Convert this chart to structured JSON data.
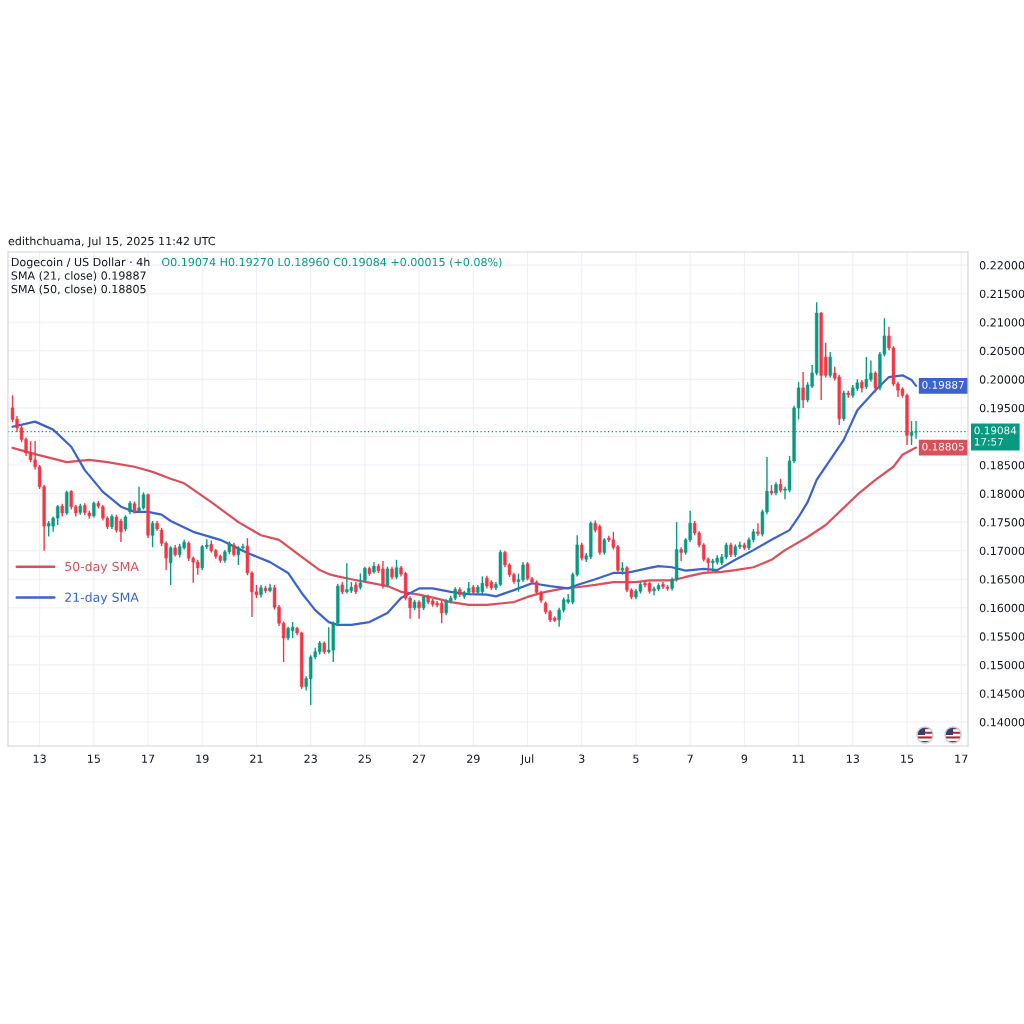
{
  "chart_data": {
    "type": "candlestick",
    "title": "Dogecoin / US Dollar · 4h",
    "subtitle": "edithchuama, Jul 15, 2025 11:42 UTC",
    "annotations": [
      "O0.19074 H0.19270 L0.18960 C0.19084 +0.00015 (+0.08%)",
      "SMA (21, close) 0.19887",
      "SMA (50, close) 0.18805"
    ],
    "x": [
      "2025-06-12T00:00",
      "2025-06-12T04:00",
      "2025-06-12T08:00",
      "2025-06-12T12:00",
      "2025-06-12T16:00",
      "2025-06-12T20:00",
      "2025-06-13T00:00",
      "2025-06-13T04:00",
      "2025-06-13T08:00",
      "2025-06-13T12:00",
      "2025-06-13T16:00",
      "2025-06-13T20:00",
      "2025-06-14T00:00",
      "2025-06-14T04:00",
      "2025-06-14T08:00",
      "2025-06-14T12:00",
      "2025-06-14T16:00",
      "2025-06-14T20:00",
      "2025-06-15T00:00",
      "2025-06-15T04:00",
      "2025-06-15T08:00",
      "2025-06-15T12:00",
      "2025-06-15T16:00",
      "2025-06-15T20:00",
      "2025-06-16T00:00",
      "2025-06-16T04:00",
      "2025-06-16T08:00",
      "2025-06-16T12:00",
      "2025-06-16T16:00",
      "2025-06-16T20:00",
      "2025-06-17T00:00",
      "2025-06-17T04:00",
      "2025-06-17T08:00",
      "2025-06-17T12:00",
      "2025-06-17T16:00",
      "2025-06-17T20:00",
      "2025-06-18T00:00",
      "2025-06-18T04:00",
      "2025-06-18T08:00",
      "2025-06-18T12:00",
      "2025-06-18T16:00",
      "2025-06-18T20:00",
      "2025-06-19T00:00",
      "2025-06-19T04:00",
      "2025-06-19T08:00",
      "2025-06-19T12:00",
      "2025-06-19T16:00",
      "2025-06-19T20:00",
      "2025-06-20T00:00",
      "2025-06-20T04:00",
      "2025-06-20T08:00",
      "2025-06-20T12:00",
      "2025-06-20T16:00",
      "2025-06-20T20:00",
      "2025-06-21T00:00",
      "2025-06-21T04:00",
      "2025-06-21T08:00",
      "2025-06-21T12:00",
      "2025-06-21T16:00",
      "2025-06-21T20:00",
      "2025-06-22T00:00",
      "2025-06-22T04:00",
      "2025-06-22T08:00",
      "2025-06-22T12:00",
      "2025-06-22T16:00",
      "2025-06-22T20:00",
      "2025-06-23T00:00",
      "2025-06-23T04:00",
      "2025-06-23T08:00",
      "2025-06-23T12:00",
      "2025-06-23T16:00",
      "2025-06-23T20:00",
      "2025-06-24T00:00",
      "2025-06-24T04:00",
      "2025-06-24T08:00",
      "2025-06-24T12:00",
      "2025-06-24T16:00",
      "2025-06-24T20:00",
      "2025-06-25T00:00",
      "2025-06-25T04:00",
      "2025-06-25T08:00",
      "2025-06-25T12:00",
      "2025-06-25T16:00",
      "2025-06-25T20:00",
      "2025-06-26T00:00",
      "2025-06-26T04:00",
      "2025-06-26T08:00",
      "2025-06-26T12:00",
      "2025-06-26T16:00",
      "2025-06-26T20:00",
      "2025-06-27T00:00",
      "2025-06-27T04:00",
      "2025-06-27T08:00",
      "2025-06-27T12:00",
      "2025-06-27T16:00",
      "2025-06-27T20:00",
      "2025-06-28T00:00",
      "2025-06-28T04:00",
      "2025-06-28T08:00",
      "2025-06-28T12:00",
      "2025-06-28T16:00",
      "2025-06-28T20:00",
      "2025-06-29T00:00",
      "2025-06-29T04:00",
      "2025-06-29T08:00",
      "2025-06-29T12:00",
      "2025-06-29T16:00",
      "2025-06-29T20:00",
      "2025-06-30T00:00",
      "2025-06-30T04:00",
      "2025-06-30T08:00",
      "2025-06-30T12:00",
      "2025-06-30T16:00",
      "2025-06-30T20:00",
      "2025-07-01T00:00",
      "2025-07-01T04:00",
      "2025-07-01T08:00",
      "2025-07-01T12:00",
      "2025-07-01T16:00",
      "2025-07-01T20:00",
      "2025-07-02T00:00",
      "2025-07-02T04:00",
      "2025-07-02T08:00",
      "2025-07-02T12:00",
      "2025-07-02T16:00",
      "2025-07-02T20:00",
      "2025-07-03T00:00",
      "2025-07-03T04:00",
      "2025-07-03T08:00",
      "2025-07-03T12:00",
      "2025-07-03T16:00",
      "2025-07-03T20:00",
      "2025-07-04T00:00",
      "2025-07-04T04:00",
      "2025-07-04T08:00",
      "2025-07-04T12:00",
      "2025-07-04T16:00",
      "2025-07-04T20:00",
      "2025-07-05T00:00",
      "2025-07-05T04:00",
      "2025-07-05T08:00",
      "2025-07-05T12:00",
      "2025-07-05T16:00",
      "2025-07-05T20:00",
      "2025-07-06T00:00",
      "2025-07-06T04:00",
      "2025-07-06T08:00",
      "2025-07-06T12:00",
      "2025-07-06T16:00",
      "2025-07-06T20:00",
      "2025-07-07T00:00",
      "2025-07-07T04:00",
      "2025-07-07T08:00",
      "2025-07-07T12:00",
      "2025-07-07T16:00",
      "2025-07-07T20:00",
      "2025-07-08T00:00",
      "2025-07-08T04:00",
      "2025-07-08T08:00",
      "2025-07-08T12:00",
      "2025-07-08T16:00",
      "2025-07-08T20:00",
      "2025-07-09T00:00",
      "2025-07-09T04:00",
      "2025-07-09T08:00",
      "2025-07-09T12:00",
      "2025-07-09T16:00",
      "2025-07-09T20:00",
      "2025-07-10T00:00",
      "2025-07-10T04:00",
      "2025-07-10T08:00",
      "2025-07-10T12:00",
      "2025-07-10T16:00",
      "2025-07-10T20:00",
      "2025-07-11T00:00",
      "2025-07-11T04:00",
      "2025-07-11T08:00",
      "2025-07-11T12:00",
      "2025-07-11T16:00",
      "2025-07-11T20:00",
      "2025-07-12T00:00",
      "2025-07-12T04:00",
      "2025-07-12T08:00",
      "2025-07-12T12:00",
      "2025-07-12T16:00",
      "2025-07-12T20:00",
      "2025-07-13T00:00",
      "2025-07-13T04:00",
      "2025-07-13T08:00",
      "2025-07-13T12:00",
      "2025-07-13T16:00",
      "2025-07-13T20:00",
      "2025-07-14T00:00",
      "2025-07-14T04:00",
      "2025-07-14T08:00",
      "2025-07-14T12:00",
      "2025-07-14T16:00",
      "2025-07-14T20:00",
      "2025-07-15T00:00",
      "2025-07-15T04:00",
      "2025-07-15T08:00"
    ],
    "ohlc": [
      [
        0.195,
        0.1972,
        0.1925,
        0.193
      ],
      [
        0.193,
        0.1936,
        0.1908,
        0.1915
      ],
      [
        0.1915,
        0.192,
        0.189,
        0.1895
      ],
      [
        0.1895,
        0.1898,
        0.1866,
        0.1871
      ],
      [
        0.1871,
        0.1892,
        0.1855,
        0.1859
      ],
      [
        0.1859,
        0.1892,
        0.1842,
        0.1847
      ],
      [
        0.1847,
        0.185,
        0.1808,
        0.1812
      ],
      [
        0.1812,
        0.1815,
        0.17,
        0.1743
      ],
      [
        0.1743,
        0.1752,
        0.1725,
        0.1748
      ],
      [
        0.1743,
        0.176,
        0.1733,
        0.1757
      ],
      [
        0.1757,
        0.178,
        0.1745,
        0.1777
      ],
      [
        0.1778,
        0.1782,
        0.176,
        0.1766
      ],
      [
        0.1766,
        0.1805,
        0.1763,
        0.1802
      ],
      [
        0.1804,
        0.1806,
        0.1772,
        0.1777
      ],
      [
        0.1777,
        0.178,
        0.176,
        0.1766
      ],
      [
        0.1767,
        0.1782,
        0.1763,
        0.1778
      ],
      [
        0.1779,
        0.1783,
        0.1762,
        0.1767
      ],
      [
        0.1766,
        0.177,
        0.1756,
        0.1761
      ],
      [
        0.1761,
        0.1786,
        0.1758,
        0.1783
      ],
      [
        0.1783,
        0.1787,
        0.1774,
        0.1778
      ],
      [
        0.1777,
        0.178,
        0.1753,
        0.1757
      ],
      [
        0.1757,
        0.176,
        0.1738,
        0.1742
      ],
      [
        0.1742,
        0.1764,
        0.1738,
        0.176
      ],
      [
        0.1759,
        0.1763,
        0.1732,
        0.1736
      ],
      [
        0.1752,
        0.1756,
        0.1715,
        0.1733
      ],
      [
        0.1738,
        0.1762,
        0.1734,
        0.1759
      ],
      [
        0.1768,
        0.1787,
        0.1764,
        0.1783
      ],
      [
        0.1782,
        0.1786,
        0.1765,
        0.1768
      ],
      [
        0.177,
        0.1812,
        0.1768,
        0.1775
      ],
      [
        0.1775,
        0.1802,
        0.1772,
        0.1798
      ],
      [
        0.1798,
        0.18,
        0.1722,
        0.1727
      ],
      [
        0.1727,
        0.1752,
        0.1706,
        0.1748
      ],
      [
        0.1748,
        0.1752,
        0.1735,
        0.1738
      ],
      [
        0.1736,
        0.174,
        0.1708,
        0.1713
      ],
      [
        0.1713,
        0.1716,
        0.1666,
        0.1687
      ],
      [
        0.1679,
        0.1708,
        0.164,
        0.1705
      ],
      [
        0.1705,
        0.171,
        0.169,
        0.1693
      ],
      [
        0.1693,
        0.1712,
        0.1688,
        0.1707
      ],
      [
        0.1705,
        0.1719,
        0.1702,
        0.1715
      ],
      [
        0.1713,
        0.1716,
        0.1682,
        0.1687
      ],
      [
        0.1687,
        0.169,
        0.1644,
        0.168
      ],
      [
        0.168,
        0.1684,
        0.1658,
        0.167
      ],
      [
        0.167,
        0.171,
        0.1666,
        0.1707
      ],
      [
        0.1707,
        0.172,
        0.1703,
        0.171
      ],
      [
        0.1711,
        0.1718,
        0.1697,
        0.17
      ],
      [
        0.17,
        0.1703,
        0.1686,
        0.169
      ],
      [
        0.169,
        0.1693,
        0.1679,
        0.1683
      ],
      [
        0.1683,
        0.1701,
        0.1679,
        0.1698
      ],
      [
        0.1698,
        0.1716,
        0.1694,
        0.1712
      ],
      [
        0.171,
        0.1714,
        0.169,
        0.1693
      ],
      [
        0.1693,
        0.1708,
        0.1675,
        0.1705
      ],
      [
        0.1705,
        0.1712,
        0.1702,
        0.1707
      ],
      [
        0.1708,
        0.1722,
        0.1657,
        0.1661
      ],
      [
        0.1661,
        0.1664,
        0.1584,
        0.1628
      ],
      [
        0.1628,
        0.164,
        0.1617,
        0.1623
      ],
      [
        0.1623,
        0.164,
        0.1618,
        0.1635
      ],
      [
        0.1634,
        0.1638,
        0.1626,
        0.163
      ],
      [
        0.163,
        0.1642,
        0.1627,
        0.1635
      ],
      [
        0.1635,
        0.164,
        0.1597,
        0.1601
      ],
      [
        0.1601,
        0.1605,
        0.1568,
        0.1573
      ],
      [
        0.1573,
        0.1576,
        0.1505,
        0.1547
      ],
      [
        0.1547,
        0.1567,
        0.1543,
        0.1564
      ],
      [
        0.156,
        0.1575,
        0.1547,
        0.1566
      ],
      [
        0.1564,
        0.1567,
        0.1552,
        0.1556
      ],
      [
        0.1556,
        0.1558,
        0.1458,
        0.1462
      ],
      [
        0.1462,
        0.148,
        0.1455,
        0.1476
      ],
      [
        0.1476,
        0.1517,
        0.143,
        0.1514
      ],
      [
        0.1514,
        0.153,
        0.151,
        0.1523
      ],
      [
        0.1523,
        0.1542,
        0.1518,
        0.1538
      ],
      [
        0.1538,
        0.1541,
        0.1519,
        0.1523
      ],
      [
        0.1523,
        0.1566,
        0.152,
        0.1526
      ],
      [
        0.1526,
        0.1576,
        0.1505,
        0.1573
      ],
      [
        0.1573,
        0.1642,
        0.157,
        0.1638
      ],
      [
        0.164,
        0.1645,
        0.1624,
        0.1628
      ],
      [
        0.1628,
        0.1678,
        0.1625,
        0.1632
      ],
      [
        0.163,
        0.1645,
        0.1626,
        0.1636
      ],
      [
        0.164,
        0.1645,
        0.1624,
        0.1628
      ],
      [
        0.1636,
        0.166,
        0.1632,
        0.1643
      ],
      [
        0.1648,
        0.1672,
        0.1645,
        0.1669
      ],
      [
        0.1669,
        0.1672,
        0.1656,
        0.166
      ],
      [
        0.1663,
        0.168,
        0.166,
        0.1673
      ],
      [
        0.1673,
        0.1677,
        0.1661,
        0.1665
      ],
      [
        0.1668,
        0.1682,
        0.1634,
        0.1638
      ],
      [
        0.164,
        0.1672,
        0.1636,
        0.1668
      ],
      [
        0.1668,
        0.1672,
        0.165,
        0.1654
      ],
      [
        0.1654,
        0.1684,
        0.165,
        0.167
      ],
      [
        0.167,
        0.1673,
        0.1655,
        0.1659
      ],
      [
        0.166,
        0.1663,
        0.1613,
        0.1617
      ],
      [
        0.1617,
        0.162,
        0.1581,
        0.16
      ],
      [
        0.16,
        0.1614,
        0.1596,
        0.161
      ],
      [
        0.161,
        0.1613,
        0.1581,
        0.16
      ],
      [
        0.16,
        0.1622,
        0.1596,
        0.1619
      ],
      [
        0.1619,
        0.1623,
        0.1606,
        0.161
      ],
      [
        0.1612,
        0.1616,
        0.1602,
        0.1606
      ],
      [
        0.1608,
        0.1612,
        0.1601,
        0.1605
      ],
      [
        0.1608,
        0.1612,
        0.1573,
        0.1591
      ],
      [
        0.1591,
        0.1615,
        0.1587,
        0.1612
      ],
      [
        0.1612,
        0.1621,
        0.1608,
        0.1617
      ],
      [
        0.1617,
        0.1636,
        0.1613,
        0.1632
      ],
      [
        0.1632,
        0.1636,
        0.1619,
        0.1623
      ],
      [
        0.162,
        0.163,
        0.1616,
        0.1626
      ],
      [
        0.1627,
        0.1645,
        0.1623,
        0.1634
      ],
      [
        0.1636,
        0.164,
        0.1623,
        0.1627
      ],
      [
        0.1627,
        0.164,
        0.1623,
        0.1636
      ],
      [
        0.1628,
        0.1655,
        0.1624,
        0.1643
      ],
      [
        0.1652,
        0.1656,
        0.1634,
        0.1638
      ],
      [
        0.1645,
        0.1648,
        0.1631,
        0.1635
      ],
      [
        0.1635,
        0.1645,
        0.1631,
        0.1641
      ],
      [
        0.1641,
        0.1701,
        0.1638,
        0.1697
      ],
      [
        0.1697,
        0.17,
        0.1671,
        0.1675
      ],
      [
        0.1675,
        0.1678,
        0.1654,
        0.1658
      ],
      [
        0.1658,
        0.1661,
        0.1642,
        0.1646
      ],
      [
        0.1646,
        0.166,
        0.1628,
        0.1649
      ],
      [
        0.1649,
        0.168,
        0.1645,
        0.1675
      ],
      [
        0.1677,
        0.168,
        0.1648,
        0.1651
      ],
      [
        0.1651,
        0.1654,
        0.1641,
        0.1645
      ],
      [
        0.1645,
        0.1648,
        0.1623,
        0.1627
      ],
      [
        0.1627,
        0.163,
        0.1609,
        0.1613
      ],
      [
        0.1608,
        0.1611,
        0.1589,
        0.1593
      ],
      [
        0.1593,
        0.1596,
        0.1575,
        0.1579
      ],
      [
        0.1582,
        0.1585,
        0.1575,
        0.1578
      ],
      [
        0.1579,
        0.16,
        0.1567,
        0.1596
      ],
      [
        0.1596,
        0.1618,
        0.1592,
        0.1614
      ],
      [
        0.161,
        0.1624,
        0.1607,
        0.1614
      ],
      [
        0.161,
        0.1662,
        0.1606,
        0.1658
      ],
      [
        0.1658,
        0.1727,
        0.1655,
        0.171
      ],
      [
        0.171,
        0.1714,
        0.1683,
        0.1687
      ],
      [
        0.1685,
        0.1696,
        0.168,
        0.1691
      ],
      [
        0.1689,
        0.1751,
        0.1685,
        0.1748
      ],
      [
        0.1748,
        0.1753,
        0.1732,
        0.1736
      ],
      [
        0.1742,
        0.1746,
        0.1693,
        0.1697
      ],
      [
        0.1697,
        0.1722,
        0.1693,
        0.1719
      ],
      [
        0.1722,
        0.1726,
        0.1715,
        0.1719
      ],
      [
        0.1719,
        0.1733,
        0.1702,
        0.1706
      ],
      [
        0.1707,
        0.171,
        0.1662,
        0.1666
      ],
      [
        0.1666,
        0.168,
        0.1658,
        0.1669
      ],
      [
        0.167,
        0.1673,
        0.1627,
        0.1631
      ],
      [
        0.1631,
        0.1634,
        0.1615,
        0.1619
      ],
      [
        0.1619,
        0.1633,
        0.1615,
        0.1629
      ],
      [
        0.1629,
        0.1645,
        0.1625,
        0.1641
      ],
      [
        0.1643,
        0.1646,
        0.1636,
        0.164
      ],
      [
        0.1643,
        0.1646,
        0.1625,
        0.1629
      ],
      [
        0.163,
        0.1637,
        0.1622,
        0.1633
      ],
      [
        0.1633,
        0.1643,
        0.1629,
        0.1639
      ],
      [
        0.1641,
        0.1645,
        0.1633,
        0.1637
      ],
      [
        0.1636,
        0.164,
        0.163,
        0.1634
      ],
      [
        0.1634,
        0.1653,
        0.163,
        0.165
      ],
      [
        0.165,
        0.175,
        0.1646,
        0.1702
      ],
      [
        0.1702,
        0.1706,
        0.1682,
        0.1697
      ],
      [
        0.1697,
        0.1722,
        0.1693,
        0.1719
      ],
      [
        0.1719,
        0.177,
        0.1715,
        0.1748
      ],
      [
        0.1748,
        0.1752,
        0.1727,
        0.1731
      ],
      [
        0.1731,
        0.1734,
        0.1706,
        0.171
      ],
      [
        0.171,
        0.1713,
        0.1681,
        0.1685
      ],
      [
        0.1685,
        0.1688,
        0.1663,
        0.1679
      ],
      [
        0.1679,
        0.1686,
        0.1663,
        0.1682
      ],
      [
        0.168,
        0.1692,
        0.1676,
        0.1687
      ],
      [
        0.1679,
        0.1694,
        0.1675,
        0.1689
      ],
      [
        0.1689,
        0.1714,
        0.1685,
        0.171
      ],
      [
        0.171,
        0.1714,
        0.1689,
        0.1693
      ],
      [
        0.1693,
        0.1711,
        0.1689,
        0.1707
      ],
      [
        0.1707,
        0.1716,
        0.1703,
        0.171
      ],
      [
        0.171,
        0.1714,
        0.1701,
        0.1705
      ],
      [
        0.1705,
        0.1723,
        0.1701,
        0.1719
      ],
      [
        0.1719,
        0.1738,
        0.1715,
        0.1733
      ],
      [
        0.1733,
        0.1748,
        0.1726,
        0.173
      ],
      [
        0.1729,
        0.1772,
        0.1725,
        0.1768
      ],
      [
        0.1768,
        0.1864,
        0.1764,
        0.1804
      ],
      [
        0.1804,
        0.1815,
        0.1797,
        0.1801
      ],
      [
        0.1801,
        0.182,
        0.1797,
        0.1816
      ],
      [
        0.1816,
        0.1826,
        0.1802,
        0.1806
      ],
      [
        0.1806,
        0.1812,
        0.179,
        0.1808
      ],
      [
        0.1806,
        0.1866,
        0.1802,
        0.1857
      ],
      [
        0.1857,
        0.1954,
        0.1853,
        0.195
      ],
      [
        0.195,
        0.1995,
        0.193,
        0.1985
      ],
      [
        0.1985,
        0.2013,
        0.195,
        0.1964
      ],
      [
        0.1964,
        0.1995,
        0.196,
        0.199
      ],
      [
        0.1988,
        0.2025,
        0.1985,
        0.2011
      ],
      [
        0.2011,
        0.2135,
        0.2007,
        0.2116
      ],
      [
        0.2116,
        0.2118,
        0.1964,
        0.2007
      ],
      [
        0.2039,
        0.2064,
        0.2003,
        0.2007
      ],
      [
        0.2007,
        0.2048,
        0.2003,
        0.2039
      ],
      [
        0.2011,
        0.2022,
        0.1998,
        0.2002
      ],
      [
        0.2004,
        0.2008,
        0.192,
        0.1931
      ],
      [
        0.1931,
        0.198,
        0.1927,
        0.1976
      ],
      [
        0.1976,
        0.198,
        0.1968,
        0.1973
      ],
      [
        0.1972,
        0.199,
        0.1968,
        0.1985
      ],
      [
        0.1984,
        0.2,
        0.198,
        0.1994
      ],
      [
        0.1995,
        0.1999,
        0.1977,
        0.1985
      ],
      [
        0.1987,
        0.2039,
        0.1983,
        0.2
      ],
      [
        0.2,
        0.2033,
        0.1996,
        0.2011
      ],
      [
        0.2011,
        0.2014,
        0.1977,
        0.1985
      ],
      [
        0.1985,
        0.2048,
        0.1981,
        0.2044
      ],
      [
        0.2044,
        0.2107,
        0.204,
        0.2076
      ],
      [
        0.2076,
        0.2092,
        0.2051,
        0.2055
      ],
      [
        0.2055,
        0.2058,
        0.1988,
        0.1992
      ],
      [
        0.1992,
        0.1996,
        0.1969,
        0.1981
      ],
      [
        0.1983,
        0.1986,
        0.1968,
        0.1972
      ],
      [
        0.1972,
        0.1975,
        0.1885,
        0.1902
      ],
      [
        0.1902,
        0.1927,
        0.1885,
        0.19074
      ],
      [
        0.19074,
        0.1927,
        0.1896,
        0.19084
      ]
    ],
    "series": [
      {
        "type": "line",
        "name": "50-day SMA",
        "color": "#d9505b",
        "x": [
          "2025-06-12T00:00",
          "2025-06-12T20:00",
          "2025-06-14T00:00",
          "2025-06-14T20:00",
          "2025-06-15T12:00",
          "2025-06-16T12:00",
          "2025-06-17T04:00",
          "2025-06-17T20:00",
          "2025-06-18T08:00",
          "2025-06-19T08:00",
          "2025-06-20T08:00",
          "2025-06-21T04:00",
          "2025-06-21T20:00",
          "2025-06-22T16:00",
          "2025-06-23T08:00",
          "2025-06-23T16:00",
          "2025-06-24T00:00",
          "2025-06-24T12:00",
          "2025-06-25T04:00",
          "2025-06-25T20:00",
          "2025-06-26T08:00",
          "2025-06-27T00:00",
          "2025-06-27T16:00",
          "2025-06-28T04:00",
          "2025-06-28T20:00",
          "2025-06-29T12:00",
          "2025-06-30T12:00",
          "2025-07-01T00:00",
          "2025-07-01T16:00",
          "2025-07-02T08:00",
          "2025-07-02T20:00",
          "2025-07-03T12:00",
          "2025-07-04T04:00",
          "2025-07-05T00:00",
          "2025-07-05T12:00",
          "2025-07-06T08:00",
          "2025-07-06T20:00",
          "2025-07-07T12:00",
          "2025-07-08T04:00",
          "2025-07-08T16:00",
          "2025-07-09T08:00",
          "2025-07-10T00:00",
          "2025-07-10T12:00",
          "2025-07-11T08:00",
          "2025-07-12T00:00",
          "2025-07-13T04:00",
          "2025-07-13T20:00",
          "2025-07-14T12:00",
          "2025-07-14T20:00",
          "2025-07-15T08:00"
        ],
        "values": [
          0.188,
          0.1869,
          0.1855,
          0.1859,
          0.1855,
          0.1847,
          0.1838,
          0.1826,
          0.1818,
          0.1785,
          0.175,
          0.1727,
          0.1719,
          0.1689,
          0.1666,
          0.1659,
          0.1655,
          0.165,
          0.1644,
          0.1638,
          0.1628,
          0.1623,
          0.1616,
          0.161,
          0.1605,
          0.1605,
          0.161,
          0.1619,
          0.1628,
          0.1634,
          0.1636,
          0.164,
          0.1645,
          0.1645,
          0.1648,
          0.1648,
          0.1654,
          0.1661,
          0.1663,
          0.1666,
          0.1671,
          0.1684,
          0.1701,
          0.1724,
          0.1745,
          0.1798,
          0.1824,
          0.1847,
          0.1868,
          0.18805
        ],
        "value_labels": [
          null,
          null,
          null,
          null,
          null,
          null,
          null,
          null,
          null,
          null,
          null,
          null,
          null,
          null,
          null,
          null,
          null,
          null,
          null,
          null,
          null,
          null,
          null,
          null,
          null,
          null,
          null,
          null,
          null,
          null,
          null,
          null,
          null,
          null,
          null,
          null,
          null,
          null,
          null,
          null,
          null,
          null,
          null,
          null,
          null,
          null,
          null,
          null,
          null,
          "0.18805"
        ]
      },
      {
        "type": "line",
        "name": "21-day SMA",
        "color": "#3b63c9",
        "x": [
          "2025-06-12T00:00",
          "2025-06-12T20:00",
          "2025-06-13T12:00",
          "2025-06-14T04:00",
          "2025-06-14T16:00",
          "2025-06-15T08:00",
          "2025-06-16T00:00",
          "2025-06-16T12:00",
          "2025-06-17T00:00",
          "2025-06-17T12:00",
          "2025-06-17T20:00",
          "2025-06-18T16:00",
          "2025-06-19T16:00",
          "2025-06-20T16:00",
          "2025-06-21T12:00",
          "2025-06-22T04:00",
          "2025-06-22T16:00",
          "2025-06-23T04:00",
          "2025-06-23T16:00",
          "2025-06-24T00:00",
          "2025-06-24T12:00",
          "2025-06-25T04:00",
          "2025-06-25T20:00",
          "2025-06-26T08:00",
          "2025-06-27T00:00",
          "2025-06-27T12:00",
          "2025-06-28T04:00",
          "2025-06-28T20:00",
          "2025-06-29T12:00",
          "2025-06-29T20:00",
          "2025-06-30T12:00",
          "2025-07-01T04:00",
          "2025-07-01T20:00",
          "2025-07-02T12:00",
          "2025-07-02T20:00",
          "2025-07-03T12:00",
          "2025-07-04T04:00",
          "2025-07-04T16:00",
          "2025-07-05T12:00",
          "2025-07-05T20:00",
          "2025-07-06T08:00",
          "2025-07-06T20:00",
          "2025-07-07T12:00",
          "2025-07-08T00:00",
          "2025-07-08T16:00",
          "2025-07-09T08:00",
          "2025-07-10T00:00",
          "2025-07-10T16:00",
          "2025-07-11T00:00",
          "2025-07-11T08:00",
          "2025-07-11T16:00",
          "2025-07-12T16:00",
          "2025-07-13T04:00",
          "2025-07-13T20:00",
          "2025-07-14T08:00",
          "2025-07-14T20:00",
          "2025-07-15T04:00",
          "2025-07-15T08:00"
        ],
        "values": [
          0.1917,
          0.1926,
          0.1912,
          0.1882,
          0.1841,
          0.1803,
          0.1777,
          0.1768,
          0.1768,
          0.1763,
          0.1752,
          0.1733,
          0.1719,
          0.1696,
          0.168,
          0.1661,
          0.1626,
          0.1596,
          0.1575,
          0.157,
          0.157,
          0.1575,
          0.1591,
          0.1617,
          0.1634,
          0.1634,
          0.1628,
          0.1624,
          0.1623,
          0.162,
          0.1631,
          0.1643,
          0.1638,
          0.1634,
          0.164,
          0.165,
          0.1661,
          0.1661,
          0.167,
          0.1673,
          0.1671,
          0.1665,
          0.1668,
          0.1666,
          0.1684,
          0.1701,
          0.1719,
          0.1736,
          0.1759,
          0.1785,
          0.1824,
          0.1894,
          0.1946,
          0.1981,
          0.2004,
          0.2007,
          0.1999,
          0.19887
        ],
        "value_labels": [
          null,
          null,
          null,
          null,
          null,
          null,
          null,
          null,
          null,
          null,
          null,
          null,
          null,
          null,
          null,
          null,
          null,
          null,
          null,
          null,
          null,
          null,
          null,
          null,
          null,
          null,
          null,
          null,
          null,
          null,
          null,
          null,
          null,
          null,
          null,
          null,
          null,
          null,
          null,
          null,
          null,
          null,
          null,
          null,
          null,
          null,
          null,
          null,
          null,
          null,
          null,
          null,
          null,
          null,
          null,
          null,
          null,
          "0.19887"
        ]
      }
    ],
    "ref_lines": [
      {
        "axis": "y",
        "value": 0.19084,
        "label": "0.19084\n17:57",
        "color": "#089981",
        "line_style": "dotted"
      }
    ],
    "xlim": [
      "2025-06-11T20:00",
      "2025-07-17T06:00"
    ],
    "xticks": [
      {
        "value": "2025-06-13",
        "label": "13"
      },
      {
        "value": "2025-06-15",
        "label": "15"
      },
      {
        "value": "2025-06-17",
        "label": "17"
      },
      {
        "value": "2025-06-19",
        "label": "19"
      },
      {
        "value": "2025-06-21",
        "label": "21"
      },
      {
        "value": "2025-06-23",
        "label": "23"
      },
      {
        "value": "2025-06-25",
        "label": "25"
      },
      {
        "value": "2025-06-27",
        "label": "27"
      },
      {
        "value": "2025-06-29",
        "label": "29"
      },
      {
        "value": "2025-07-01",
        "label": "Jul"
      },
      {
        "value": "2025-07-03",
        "label": "3"
      },
      {
        "value": "2025-07-05",
        "label": "5"
      },
      {
        "value": "2025-07-07",
        "label": "7"
      },
      {
        "value": "2025-07-09",
        "label": "9"
      },
      {
        "value": "2025-07-11",
        "label": "11"
      },
      {
        "value": "2025-07-13",
        "label": "13"
      },
      {
        "value": "2025-07-15",
        "label": "15"
      },
      {
        "value": "2025-07-17",
        "label": "17"
      }
    ],
    "ylim": [
      0.1358,
      0.2223
    ],
    "yticks": [
      {
        "value": 0.14,
        "label": "0.14000"
      },
      {
        "value": 0.145,
        "label": "0.14500"
      },
      {
        "value": 0.15,
        "label": "0.15000"
      },
      {
        "value": 0.155,
        "label": "0.15500"
      },
      {
        "value": 0.16,
        "label": "0.16000"
      },
      {
        "value": 0.165,
        "label": "0.16500"
      },
      {
        "value": 0.17,
        "label": "0.17000"
      },
      {
        "value": 0.175,
        "label": "0.17500"
      },
      {
        "value": 0.18,
        "label": "0.18000"
      },
      {
        "value": 0.185,
        "label": "0.18500"
      },
      {
        "value": 0.19,
        "label": null
      },
      {
        "value": 0.195,
        "label": "0.19500"
      },
      {
        "value": 0.2,
        "label": "0.20000"
      },
      {
        "value": 0.205,
        "label": "0.20500"
      },
      {
        "value": 0.21,
        "label": "0.21000"
      },
      {
        "value": 0.215,
        "label": "0.21500"
      },
      {
        "value": 0.22,
        "label": "0.22000"
      }
    ],
    "grid": true,
    "legend": "left"
  }
}
